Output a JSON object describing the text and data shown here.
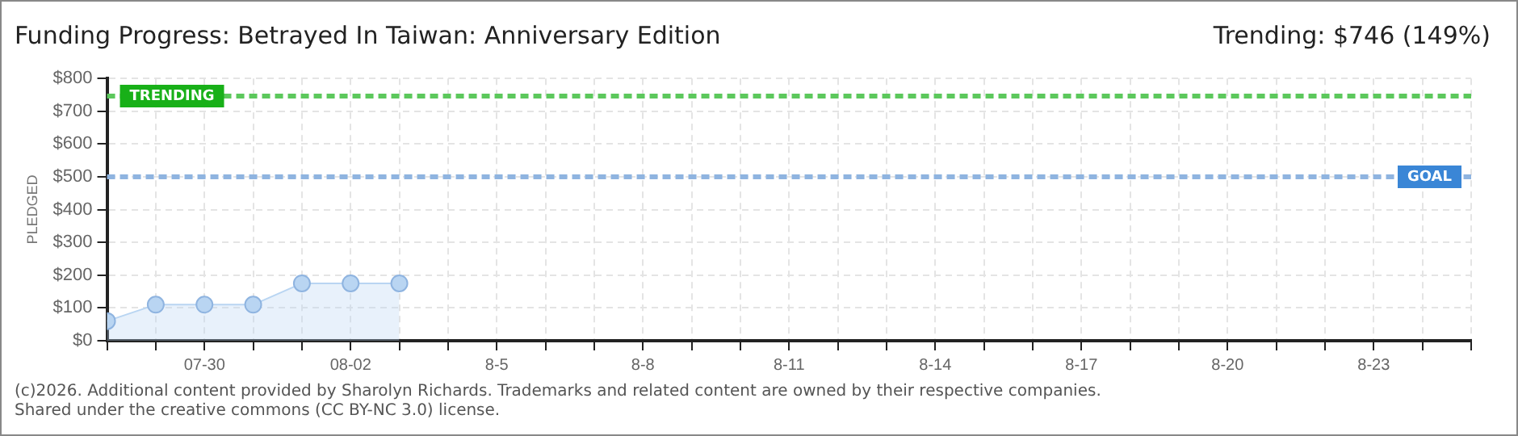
{
  "chart_data": {
    "type": "area",
    "title": "Funding Progress: Betrayed In Taiwan: Anniversary Edition",
    "ylabel": "PLEDGED",
    "annotations": [
      "Trending: $746 (149%)",
      "(c)2026. Additional content provided by Sharolyn Richards. Trademarks and related content are owned by their respective companies.",
      "Shared under the creative commons (CC BY-NC 3.0) license."
    ],
    "x": [
      "--07-28",
      "--07-29",
      "--07-30",
      "--07-31",
      "--08-01",
      "--08-02",
      "--08-03"
    ],
    "series": [
      {
        "color": "#b9d5f2",
        "values": [
          60,
          110,
          110,
          110,
          175,
          175,
          175
        ]
      }
    ],
    "xlim": [
      "--07-28",
      "--08-25"
    ],
    "xticks": [
      {
        "value": "--07-28",
        "label": null
      },
      {
        "value": "--07-29",
        "label": null
      },
      {
        "value": "--07-30",
        "label": "07-30"
      },
      {
        "value": "--07-31",
        "label": null
      },
      {
        "value": "--08-01",
        "label": null
      },
      {
        "value": "--08-02",
        "label": "08-02"
      },
      {
        "value": "--08-03",
        "label": null
      },
      {
        "value": "--08-04",
        "label": null
      },
      {
        "value": "--08-05",
        "label": "8-5"
      },
      {
        "value": "--08-06",
        "label": null
      },
      {
        "value": "--08-07",
        "label": null
      },
      {
        "value": "--08-08",
        "label": "8-8"
      },
      {
        "value": "--08-09",
        "label": null
      },
      {
        "value": "--08-10",
        "label": null
      },
      {
        "value": "--08-11",
        "label": "8-11"
      },
      {
        "value": "--08-12",
        "label": null
      },
      {
        "value": "--08-13",
        "label": null
      },
      {
        "value": "--08-14",
        "label": "8-14"
      },
      {
        "value": "--08-15",
        "label": null
      },
      {
        "value": "--08-16",
        "label": null
      },
      {
        "value": "--08-17",
        "label": "8-17"
      },
      {
        "value": "--08-18",
        "label": null
      },
      {
        "value": "--08-19",
        "label": null
      },
      {
        "value": "--08-20",
        "label": "8-20"
      },
      {
        "value": "--08-21",
        "label": null
      },
      {
        "value": "--08-22",
        "label": null
      },
      {
        "value": "--08-23",
        "label": "8-23"
      },
      {
        "value": "--08-24",
        "label": null
      },
      {
        "value": "--08-25",
        "label": null
      }
    ],
    "ylim": [
      0,
      800
    ],
    "yticks": [
      {
        "value": 0,
        "label": "$0"
      },
      {
        "value": 100,
        "label": "$100"
      },
      {
        "value": 200,
        "label": "$200"
      },
      {
        "value": 300,
        "label": "$300"
      },
      {
        "value": 400,
        "label": "$400"
      },
      {
        "value": 500,
        "label": "$500"
      },
      {
        "value": 600,
        "label": "$600"
      },
      {
        "value": 700,
        "label": "$700"
      },
      {
        "value": 800,
        "label": "$800"
      }
    ],
    "ref_lines": [
      {
        "axis": "y",
        "value": 746,
        "label": "TRENDING",
        "color": "#5cc85c",
        "line_style": "dashed"
      },
      {
        "axis": "y",
        "value": 500,
        "label": "GOAL",
        "color": "#8fb4e0",
        "line_style": "dashed"
      }
    ],
    "grid": true,
    "legend": false,
    "marker": "circle",
    "line_style": "solid"
  }
}
